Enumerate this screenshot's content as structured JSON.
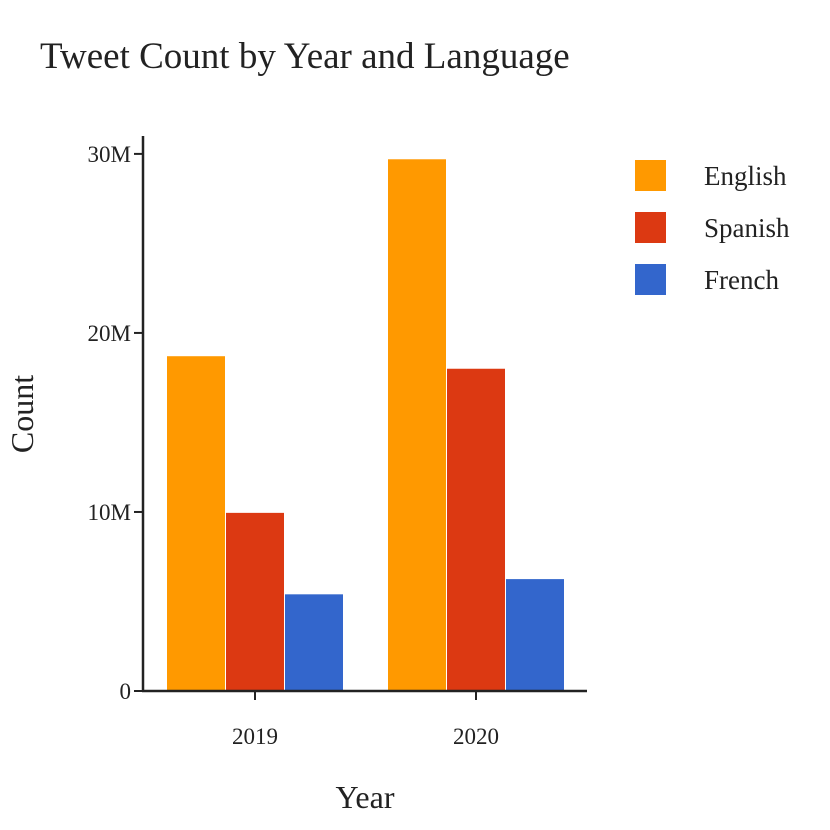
{
  "chart_data": {
    "type": "bar",
    "title": "Tweet Count by Year and Language",
    "xlabel": "Year",
    "ylabel": "Count",
    "categories": [
      "2019",
      "2020"
    ],
    "series": [
      {
        "name": "English",
        "color": "#ff9900",
        "values": [
          18700000,
          29700000
        ]
      },
      {
        "name": "Spanish",
        "color": "#dc3912",
        "values": [
          9950000,
          18000000
        ]
      },
      {
        "name": "French",
        "color": "#3366cc",
        "values": [
          5400000,
          6250000
        ]
      }
    ],
    "ylim": [
      0,
      31000000
    ],
    "yticks": [
      {
        "value": 0,
        "label": "0"
      },
      {
        "value": 10000000,
        "label": "10M"
      },
      {
        "value": 20000000,
        "label": "20M"
      },
      {
        "value": 30000000,
        "label": "30M"
      }
    ],
    "grid": false,
    "legend_position": "top-right"
  }
}
